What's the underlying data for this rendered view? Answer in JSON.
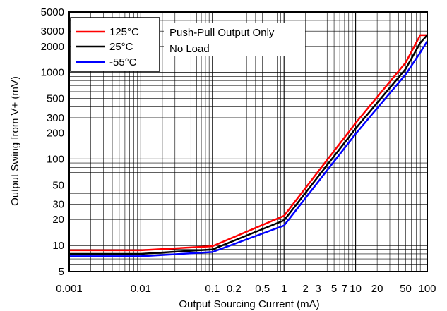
{
  "chart_data": {
    "type": "line",
    "title": "",
    "xlabel": "Output Sourcing Current (mA)",
    "ylabel": "Output Swing from V+ (mV)",
    "x_scale": "log",
    "y_scale": "log",
    "xlim": [
      0.001,
      100
    ],
    "ylim": [
      5,
      5000
    ],
    "grid": true,
    "legend_position": "top-left",
    "x_ticks": [
      {
        "value": 0.001,
        "label": "0.001"
      },
      {
        "value": 0.01,
        "label": "0.01"
      },
      {
        "value": 0.1,
        "label": "0.1"
      },
      {
        "value": 0.2,
        "label": "0.2"
      },
      {
        "value": 0.5,
        "label": "0.5"
      },
      {
        "value": 1,
        "label": "1"
      },
      {
        "value": 2,
        "label": "2"
      },
      {
        "value": 3,
        "label": "3"
      },
      {
        "value": 5,
        "label": "5"
      },
      {
        "value": 7,
        "label": "7"
      },
      {
        "value": 10,
        "label": "10"
      },
      {
        "value": 20,
        "label": "20"
      },
      {
        "value": 50,
        "label": "50"
      },
      {
        "value": 100,
        "label": "100"
      }
    ],
    "y_ticks": [
      {
        "value": 5,
        "label": "5"
      },
      {
        "value": 10,
        "label": "10"
      },
      {
        "value": 20,
        "label": "20"
      },
      {
        "value": 30,
        "label": "30"
      },
      {
        "value": 50,
        "label": "50"
      },
      {
        "value": 100,
        "label": "100"
      },
      {
        "value": 200,
        "label": "200"
      },
      {
        "value": 300,
        "label": "300"
      },
      {
        "value": 500,
        "label": "500"
      },
      {
        "value": 1000,
        "label": "1000"
      },
      {
        "value": 2000,
        "label": "2000"
      },
      {
        "value": 3000,
        "label": "3000"
      },
      {
        "value": 5000,
        "label": "5000"
      }
    ],
    "annotations": [
      "Push-Pull Output Only",
      "No Load"
    ],
    "series": [
      {
        "name": "125°C",
        "color": "#ff0000",
        "x": [
          0.001,
          0.01,
          0.1,
          1,
          10,
          50,
          80,
          100
        ],
        "y": [
          8.8,
          8.8,
          9.8,
          22,
          260,
          1300,
          2700,
          2700
        ]
      },
      {
        "name": "25°C",
        "color": "#000000",
        "x": [
          0.001,
          0.01,
          0.1,
          1,
          10,
          50,
          80,
          100
        ],
        "y": [
          8.0,
          8.0,
          9.0,
          19.5,
          225,
          1100,
          2200,
          2700
        ]
      },
      {
        "name": "-55°C",
        "color": "#0000ff",
        "x": [
          0.001,
          0.01,
          0.1,
          1,
          10,
          50,
          80,
          100
        ],
        "y": [
          7.5,
          7.5,
          8.4,
          17,
          195,
          950,
          1700,
          2300
        ]
      }
    ]
  }
}
